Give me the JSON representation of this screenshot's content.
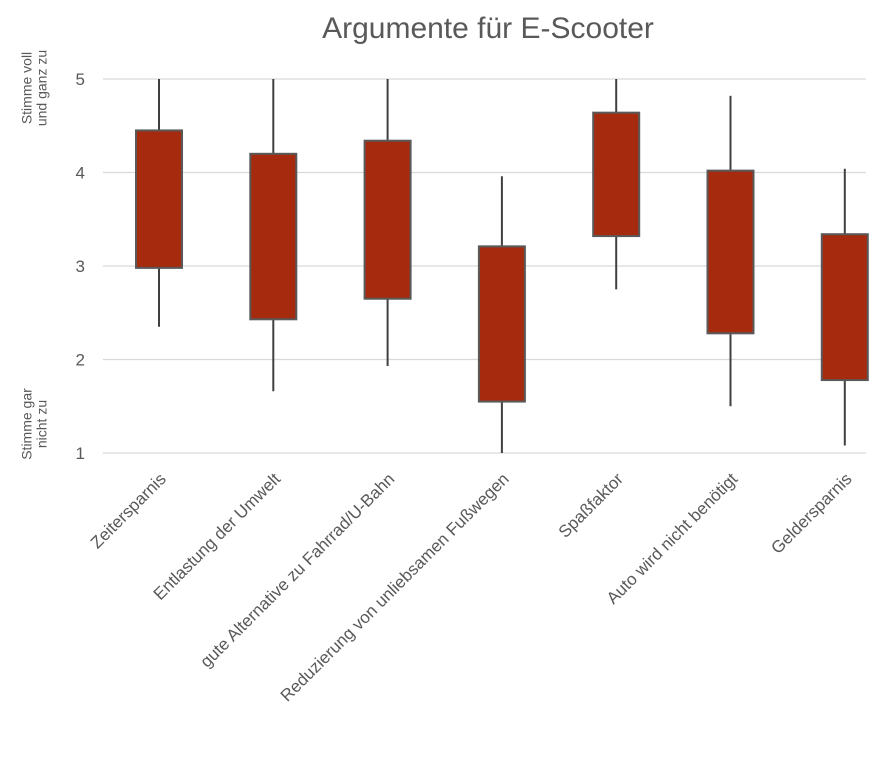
{
  "chart_data": {
    "type": "box",
    "title": "Argumente für E-Scooter",
    "ylim": [
      1,
      5
    ],
    "yticks": [
      1,
      2,
      3,
      4,
      5
    ],
    "grid": true,
    "box_color": "#A52A0E",
    "annotations": {
      "top": [
        "Stimme voll",
        "und ganz zu"
      ],
      "bottom": [
        "Stimme gar",
        "nicht zu"
      ]
    },
    "categories": [
      "Zeitersparnis",
      "Entlastung der Umwelt",
      "gute Alternative zu Fahrrad/U-Bahn",
      "Reduzierung von unliebsamen Fußwegen",
      "Spaßfaktor",
      "Auto wird nicht benötigt",
      "Geldersparnis"
    ],
    "series": [
      {
        "values": [
          {
            "min": 2.35,
            "q1": 2.98,
            "q3": 4.45,
            "max": 5.0
          },
          {
            "min": 1.66,
            "q1": 2.43,
            "q3": 4.2,
            "max": 5.0
          },
          {
            "min": 1.93,
            "q1": 2.65,
            "q3": 4.34,
            "max": 5.0
          },
          {
            "min": 1.0,
            "q1": 1.55,
            "q3": 3.21,
            "max": 3.96
          },
          {
            "min": 2.75,
            "q1": 3.32,
            "q3": 4.64,
            "max": 5.0
          },
          {
            "min": 1.5,
            "q1": 2.28,
            "q3": 4.02,
            "max": 4.82
          },
          {
            "min": 1.08,
            "q1": 1.78,
            "q3": 3.34,
            "max": 4.04
          }
        ]
      }
    ]
  }
}
